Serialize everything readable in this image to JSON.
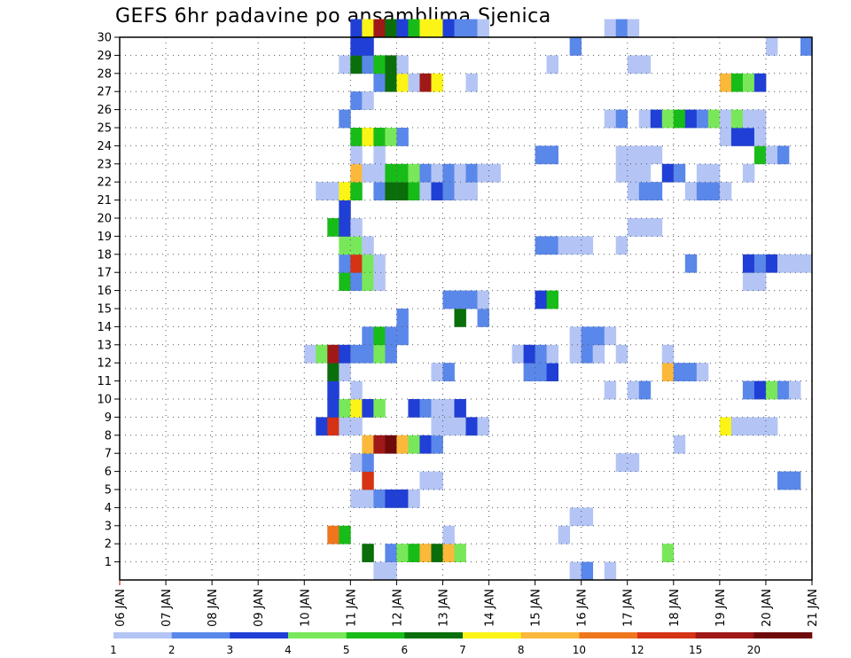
{
  "chart_data": {
    "type": "heatmap",
    "title": "GEFS 6hr padavine po ansamblima Sjenica",
    "xlabel": "",
    "ylabel": "",
    "x_ticks": [
      "06 JAN",
      "07 JAN",
      "08 JAN",
      "09 JAN",
      "10 JAN",
      "11 JAN",
      "12 JAN",
      "13 JAN",
      "14 JAN",
      "15 JAN",
      "16 JAN",
      "17 JAN",
      "18 JAN",
      "19 JAN",
      "20 JAN",
      "21 JAN"
    ],
    "y_ticks": [
      "1",
      "2",
      "3",
      "4",
      "5",
      "6",
      "7",
      "8",
      "9",
      "10",
      "11",
      "12",
      "13",
      "14",
      "15",
      "16",
      "17",
      "18",
      "19",
      "20",
      "21",
      "22",
      "23",
      "24",
      "25",
      "26",
      "27",
      "28",
      "29",
      "30"
    ],
    "x_range_days": [
      0,
      15
    ],
    "y_range": [
      0,
      30
    ],
    "grid": true,
    "cell_width_days": 0.25,
    "legend": {
      "placement": "bottom",
      "thresholds": [
        "1",
        "2",
        "3",
        "4",
        "5",
        "6",
        "7",
        "8",
        "10",
        "12",
        "15",
        "20"
      ],
      "colors": [
        "#b4c5f5",
        "#5a87ea",
        "#1f3fd6",
        "#78e85a",
        "#18bc18",
        "#0a6e0a",
        "#fbf416",
        "#fbb83a",
        "#f0761e",
        "#d63214",
        "#a01818",
        "#6e0a0a"
      ]
    },
    "colors": {
      "c1": "#b4c5f5",
      "c2": "#5a87ea",
      "c3": "#1f3fd6",
      "c4": "#78e85a",
      "c5": "#18bc18",
      "c6": "#0a6e0a",
      "c7": "#fbf416",
      "c8": "#fbb83a",
      "c10": "#f0761e",
      "c12": "#d63214",
      "c15": "#a01818",
      "c20": "#6e0a0a"
    },
    "members": {
      "30": [
        [
          5.0,
          1,
          "c3"
        ],
        [
          5.25,
          1,
          "c7"
        ],
        [
          5.5,
          1,
          "c15"
        ],
        [
          5.75,
          1,
          "c6"
        ],
        [
          6.0,
          1,
          "c3"
        ],
        [
          6.25,
          1,
          "c5"
        ],
        [
          6.5,
          2,
          "c7"
        ],
        [
          7.0,
          1,
          "c3"
        ],
        [
          7.25,
          2,
          "c2"
        ],
        [
          7.75,
          1,
          "c1"
        ],
        [
          10.5,
          1,
          "c1"
        ],
        [
          10.75,
          1,
          "c2"
        ],
        [
          11.0,
          1,
          "c1"
        ]
      ],
      "29": [
        [
          5.0,
          2,
          "c3"
        ],
        [
          9.75,
          1,
          "c2"
        ],
        [
          14.0,
          1,
          "c1"
        ],
        [
          14.75,
          1,
          "c2"
        ]
      ],
      "28": [
        [
          4.75,
          1,
          "c1"
        ],
        [
          5.0,
          1,
          "c6"
        ],
        [
          5.25,
          1,
          "c2"
        ],
        [
          5.5,
          1,
          "c5"
        ],
        [
          5.75,
          1,
          "c6"
        ],
        [
          6.0,
          1,
          "c1"
        ],
        [
          9.25,
          1,
          "c1"
        ],
        [
          11.0,
          2,
          "c1"
        ]
      ],
      "27": [
        [
          5.5,
          1,
          "c2"
        ],
        [
          5.75,
          1,
          "c6"
        ],
        [
          6.0,
          1,
          "c7"
        ],
        [
          6.25,
          1,
          "c1"
        ],
        [
          6.5,
          1,
          "c15"
        ],
        [
          6.75,
          1,
          "c7"
        ],
        [
          7.5,
          1,
          "c1"
        ],
        [
          13.0,
          1,
          "c8"
        ],
        [
          13.25,
          1,
          "c5"
        ],
        [
          13.5,
          1,
          "c4"
        ],
        [
          13.75,
          1,
          "c3"
        ]
      ],
      "26": [
        [
          5.0,
          1,
          "c2"
        ],
        [
          5.25,
          1,
          "c1"
        ]
      ],
      "25": [
        [
          4.75,
          1,
          "c2"
        ],
        [
          10.5,
          1,
          "c1"
        ],
        [
          10.75,
          1,
          "c2"
        ],
        [
          11.25,
          1,
          "c1"
        ],
        [
          11.5,
          1,
          "c3"
        ],
        [
          11.75,
          1,
          "c4"
        ],
        [
          12.0,
          1,
          "c5"
        ],
        [
          12.25,
          1,
          "c3"
        ],
        [
          12.5,
          1,
          "c2"
        ],
        [
          12.75,
          1,
          "c4"
        ],
        [
          13.0,
          1,
          "c1"
        ],
        [
          13.25,
          1,
          "c4"
        ],
        [
          13.5,
          2,
          "c1"
        ]
      ],
      "24": [
        [
          5.0,
          1,
          "c5"
        ],
        [
          5.25,
          1,
          "c7"
        ],
        [
          5.5,
          1,
          "c5"
        ],
        [
          5.75,
          1,
          "c4"
        ],
        [
          6.0,
          1,
          "c2"
        ],
        [
          13.0,
          1,
          "c1"
        ],
        [
          13.25,
          2,
          "c3"
        ],
        [
          13.75,
          1,
          "c1"
        ]
      ],
      "23": [
        [
          5.0,
          1,
          "c1"
        ],
        [
          5.5,
          1,
          "c1"
        ],
        [
          9.0,
          2,
          "c2"
        ],
        [
          10.75,
          4,
          "c1"
        ],
        [
          13.75,
          1,
          "c5"
        ],
        [
          14.0,
          1,
          "c1"
        ],
        [
          14.25,
          1,
          "c2"
        ]
      ],
      "22": [
        [
          5.0,
          1,
          "c8"
        ],
        [
          5.25,
          2,
          "c1"
        ],
        [
          5.75,
          2,
          "c5"
        ],
        [
          6.25,
          1,
          "c4"
        ],
        [
          6.5,
          1,
          "c2"
        ],
        [
          6.75,
          1,
          "c1"
        ],
        [
          7.0,
          1,
          "c2"
        ],
        [
          7.25,
          1,
          "c1"
        ],
        [
          7.5,
          1,
          "c2"
        ],
        [
          7.75,
          2,
          "c1"
        ],
        [
          10.75,
          3,
          "c1"
        ],
        [
          11.75,
          1,
          "c3"
        ],
        [
          12.0,
          1,
          "c2"
        ],
        [
          12.5,
          2,
          "c1"
        ],
        [
          13.5,
          1,
          "c1"
        ]
      ],
      "21": [
        [
          4.25,
          2,
          "c1"
        ],
        [
          4.75,
          1,
          "c7"
        ],
        [
          5.0,
          1,
          "c5"
        ],
        [
          5.5,
          1,
          "c2"
        ],
        [
          5.75,
          2,
          "c6"
        ],
        [
          6.25,
          1,
          "c5"
        ],
        [
          6.5,
          1,
          "c1"
        ],
        [
          6.75,
          1,
          "c3"
        ],
        [
          7.0,
          1,
          "c2"
        ],
        [
          7.25,
          2,
          "c1"
        ],
        [
          11.0,
          1,
          "c1"
        ],
        [
          11.25,
          2,
          "c2"
        ],
        [
          12.25,
          1,
          "c1"
        ],
        [
          12.5,
          2,
          "c2"
        ],
        [
          13.0,
          1,
          "c1"
        ]
      ],
      "20": [
        [
          4.75,
          1,
          "c3"
        ]
      ],
      "19": [
        [
          4.5,
          1,
          "c5"
        ],
        [
          4.75,
          1,
          "c3"
        ],
        [
          5.0,
          1,
          "c1"
        ],
        [
          11.0,
          3,
          "c1"
        ]
      ],
      "18": [
        [
          4.75,
          2,
          "c4"
        ],
        [
          5.25,
          1,
          "c1"
        ],
        [
          9.0,
          2,
          "c2"
        ],
        [
          9.5,
          3,
          "c1"
        ],
        [
          10.75,
          1,
          "c1"
        ]
      ],
      "17": [
        [
          4.75,
          1,
          "c2"
        ],
        [
          5.0,
          1,
          "c12"
        ],
        [
          5.25,
          1,
          "c4"
        ],
        [
          5.5,
          1,
          "c1"
        ],
        [
          12.25,
          1,
          "c2"
        ],
        [
          13.5,
          1,
          "c3"
        ],
        [
          13.75,
          1,
          "c2"
        ],
        [
          14.0,
          1,
          "c3"
        ],
        [
          14.25,
          3,
          "c1"
        ]
      ],
      "16": [
        [
          4.75,
          1,
          "c5"
        ],
        [
          5.0,
          1,
          "c2"
        ],
        [
          5.25,
          1,
          "c4"
        ],
        [
          5.5,
          1,
          "c1"
        ],
        [
          13.5,
          2,
          "c1"
        ]
      ],
      "15": [
        [
          7.0,
          3,
          "c2"
        ],
        [
          7.75,
          1,
          "c1"
        ],
        [
          9.0,
          1,
          "c3"
        ],
        [
          9.25,
          1,
          "c5"
        ]
      ],
      "14": [
        [
          6.0,
          1,
          "c2"
        ],
        [
          7.25,
          1,
          "c6"
        ],
        [
          7.75,
          1,
          "c2"
        ]
      ],
      "13": [
        [
          5.25,
          1,
          "c2"
        ],
        [
          5.5,
          1,
          "c5"
        ],
        [
          5.75,
          2,
          "c2"
        ],
        [
          9.75,
          1,
          "c1"
        ],
        [
          10.0,
          2,
          "c2"
        ],
        [
          10.5,
          1,
          "c1"
        ]
      ],
      "12": [
        [
          4.0,
          1,
          "c1"
        ],
        [
          4.25,
          1,
          "c4"
        ],
        [
          4.5,
          1,
          "c15"
        ],
        [
          4.75,
          1,
          "c3"
        ],
        [
          5.0,
          2,
          "c2"
        ],
        [
          5.5,
          1,
          "c4"
        ],
        [
          5.75,
          1,
          "c2"
        ],
        [
          8.5,
          1,
          "c1"
        ],
        [
          8.75,
          1,
          "c3"
        ],
        [
          9.0,
          1,
          "c2"
        ],
        [
          9.25,
          1,
          "c1"
        ],
        [
          9.75,
          1,
          "c1"
        ],
        [
          10.0,
          1,
          "c2"
        ],
        [
          10.25,
          1,
          "c1"
        ],
        [
          10.75,
          1,
          "c1"
        ],
        [
          11.75,
          1,
          "c1"
        ]
      ],
      "11": [
        [
          4.5,
          1,
          "c6"
        ],
        [
          4.75,
          1,
          "c1"
        ],
        [
          6.75,
          1,
          "c1"
        ],
        [
          7.0,
          1,
          "c2"
        ],
        [
          8.75,
          2,
          "c2"
        ],
        [
          9.25,
          1,
          "c3"
        ],
        [
          11.75,
          1,
          "c8"
        ],
        [
          12.0,
          2,
          "c2"
        ],
        [
          12.5,
          1,
          "c1"
        ]
      ],
      "10": [
        [
          4.5,
          1,
          "c3"
        ],
        [
          5.0,
          1,
          "c1"
        ],
        [
          10.5,
          1,
          "c1"
        ],
        [
          11.0,
          1,
          "c1"
        ],
        [
          11.25,
          1,
          "c2"
        ],
        [
          13.5,
          1,
          "c2"
        ],
        [
          13.75,
          1,
          "c3"
        ],
        [
          14.0,
          1,
          "c4"
        ],
        [
          14.25,
          1,
          "c2"
        ],
        [
          14.5,
          1,
          "c1"
        ]
      ],
      "9": [
        [
          4.5,
          1,
          "c3"
        ],
        [
          4.75,
          1,
          "c4"
        ],
        [
          5.0,
          1,
          "c7"
        ],
        [
          5.25,
          1,
          "c3"
        ],
        [
          5.5,
          1,
          "c4"
        ],
        [
          6.25,
          1,
          "c3"
        ],
        [
          6.5,
          1,
          "c2"
        ],
        [
          6.75,
          2,
          "c1"
        ],
        [
          7.25,
          1,
          "c3"
        ]
      ],
      "8": [
        [
          4.25,
          1,
          "c3"
        ],
        [
          4.5,
          1,
          "c12"
        ],
        [
          4.75,
          2,
          "c1"
        ],
        [
          6.75,
          3,
          "c1"
        ],
        [
          7.5,
          1,
          "c3"
        ],
        [
          7.75,
          1,
          "c1"
        ],
        [
          13.0,
          1,
          "c7"
        ],
        [
          13.25,
          4,
          "c1"
        ]
      ],
      "7": [
        [
          5.25,
          1,
          "c8"
        ],
        [
          5.5,
          1,
          "c15"
        ],
        [
          5.75,
          1,
          "c20"
        ],
        [
          6.0,
          1,
          "c8"
        ],
        [
          6.25,
          1,
          "c4"
        ],
        [
          6.5,
          1,
          "c3"
        ],
        [
          6.75,
          1,
          "c2"
        ],
        [
          12.0,
          1,
          "c1"
        ]
      ],
      "6": [
        [
          5.0,
          1,
          "c1"
        ],
        [
          5.25,
          1,
          "c2"
        ],
        [
          10.75,
          2,
          "c1"
        ]
      ],
      "5": [
        [
          5.25,
          1,
          "c12"
        ],
        [
          6.5,
          2,
          "c1"
        ],
        [
          14.25,
          2,
          "c2"
        ]
      ],
      "4": [
        [
          5.0,
          2,
          "c1"
        ],
        [
          5.5,
          1,
          "c2"
        ],
        [
          5.75,
          2,
          "c3"
        ],
        [
          6.25,
          1,
          "c1"
        ]
      ],
      "3": [
        [
          9.75,
          2,
          "c1"
        ]
      ],
      "2": [
        [
          4.5,
          1,
          "c10"
        ],
        [
          4.75,
          1,
          "c5"
        ],
        [
          7.0,
          1,
          "c1"
        ],
        [
          9.5,
          1,
          "c1"
        ]
      ],
      "1": [
        [
          5.25,
          1,
          "c6"
        ],
        [
          5.75,
          1,
          "c2"
        ],
        [
          6.0,
          1,
          "c4"
        ],
        [
          6.25,
          1,
          "c5"
        ],
        [
          6.5,
          1,
          "c8"
        ],
        [
          6.75,
          1,
          "c6"
        ],
        [
          7.0,
          1,
          "c8"
        ],
        [
          7.25,
          1,
          "c4"
        ],
        [
          11.75,
          1,
          "c4"
        ]
      ],
      "0": [
        [
          5.5,
          2,
          "c1"
        ],
        [
          9.75,
          1,
          "c1"
        ],
        [
          10.0,
          1,
          "c2"
        ],
        [
          10.5,
          1,
          "c1"
        ]
      ]
    }
  }
}
